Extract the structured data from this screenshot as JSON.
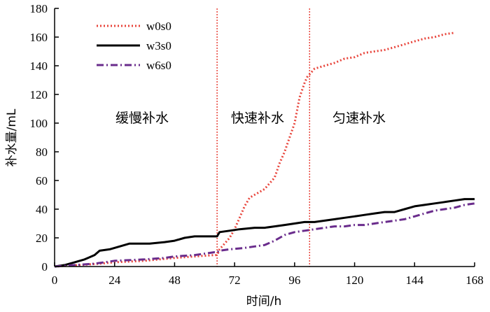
{
  "chart_data": {
    "type": "line",
    "xlabel": "时间/h",
    "ylabel": "补水量/mL",
    "xlim": [
      0,
      168
    ],
    "ylim": [
      0,
      180
    ],
    "xticks": [
      0,
      24,
      48,
      72,
      96,
      120,
      144,
      168
    ],
    "yticks": [
      0,
      20,
      40,
      60,
      80,
      100,
      120,
      140,
      160,
      180
    ],
    "grid": false,
    "legend_position": "top-left",
    "phase_dividers": [
      65,
      102
    ],
    "phase_labels": [
      "缓慢补水",
      "快速补水",
      "匀速补水"
    ],
    "series": [
      {
        "name": "w0s0",
        "color": "#e8453c",
        "dash": "dotted",
        "points": [
          [
            0,
            0
          ],
          [
            10,
            1
          ],
          [
            18,
            2
          ],
          [
            24,
            3
          ],
          [
            36,
            4
          ],
          [
            48,
            6
          ],
          [
            56,
            7
          ],
          [
            64,
            8
          ],
          [
            65,
            8
          ],
          [
            66,
            12
          ],
          [
            68,
            16
          ],
          [
            70,
            20
          ],
          [
            72,
            26
          ],
          [
            74,
            34
          ],
          [
            76,
            42
          ],
          [
            78,
            48
          ],
          [
            80,
            50
          ],
          [
            84,
            54
          ],
          [
            88,
            62
          ],
          [
            90,
            72
          ],
          [
            92,
            80
          ],
          [
            94,
            90
          ],
          [
            96,
            100
          ],
          [
            98,
            118
          ],
          [
            100,
            128
          ],
          [
            101,
            132
          ],
          [
            102,
            134
          ],
          [
            104,
            138
          ],
          [
            108,
            140
          ],
          [
            112,
            142
          ],
          [
            116,
            145
          ],
          [
            120,
            146
          ],
          [
            124,
            149
          ],
          [
            128,
            150
          ],
          [
            132,
            151
          ],
          [
            136,
            153
          ],
          [
            140,
            155
          ],
          [
            144,
            157
          ],
          [
            148,
            159
          ],
          [
            152,
            160
          ],
          [
            156,
            162
          ],
          [
            160,
            163
          ]
        ]
      },
      {
        "name": "w3s0",
        "color": "#000000",
        "dash": "solid",
        "points": [
          [
            0,
            0
          ],
          [
            4,
            1
          ],
          [
            8,
            3
          ],
          [
            12,
            5
          ],
          [
            16,
            8
          ],
          [
            18,
            11
          ],
          [
            22,
            12
          ],
          [
            26,
            14
          ],
          [
            30,
            16
          ],
          [
            38,
            16
          ],
          [
            44,
            17
          ],
          [
            48,
            18
          ],
          [
            52,
            20
          ],
          [
            56,
            21
          ],
          [
            60,
            21
          ],
          [
            65,
            21
          ],
          [
            66,
            24
          ],
          [
            70,
            25
          ],
          [
            74,
            26
          ],
          [
            80,
            27
          ],
          [
            84,
            27
          ],
          [
            88,
            28
          ],
          [
            92,
            29
          ],
          [
            96,
            30
          ],
          [
            100,
            31
          ],
          [
            104,
            31
          ],
          [
            108,
            32
          ],
          [
            112,
            33
          ],
          [
            116,
            34
          ],
          [
            120,
            35
          ],
          [
            124,
            36
          ],
          [
            128,
            37
          ],
          [
            132,
            38
          ],
          [
            136,
            38
          ],
          [
            140,
            40
          ],
          [
            144,
            42
          ],
          [
            148,
            43
          ],
          [
            152,
            44
          ],
          [
            156,
            45
          ],
          [
            160,
            46
          ],
          [
            164,
            47
          ],
          [
            168,
            47
          ]
        ]
      },
      {
        "name": "w6s0",
        "color": "#6a2c8c",
        "dash": "dashdot",
        "points": [
          [
            0,
            0
          ],
          [
            8,
            1
          ],
          [
            16,
            2
          ],
          [
            20,
            3
          ],
          [
            24,
            4
          ],
          [
            36,
            5
          ],
          [
            44,
            6
          ],
          [
            48,
            7
          ],
          [
            56,
            8
          ],
          [
            60,
            9
          ],
          [
            64,
            10
          ],
          [
            65,
            10
          ],
          [
            66,
            11
          ],
          [
            70,
            12
          ],
          [
            76,
            13
          ],
          [
            80,
            14
          ],
          [
            84,
            15
          ],
          [
            88,
            18
          ],
          [
            90,
            20
          ],
          [
            92,
            22
          ],
          [
            96,
            24
          ],
          [
            100,
            25
          ],
          [
            104,
            26
          ],
          [
            108,
            27
          ],
          [
            112,
            28
          ],
          [
            116,
            28
          ],
          [
            120,
            29
          ],
          [
            124,
            29
          ],
          [
            128,
            30
          ],
          [
            132,
            31
          ],
          [
            136,
            32
          ],
          [
            140,
            33
          ],
          [
            144,
            35
          ],
          [
            148,
            37
          ],
          [
            152,
            39
          ],
          [
            156,
            40
          ],
          [
            160,
            41
          ],
          [
            164,
            43
          ],
          [
            168,
            44
          ]
        ]
      }
    ]
  }
}
